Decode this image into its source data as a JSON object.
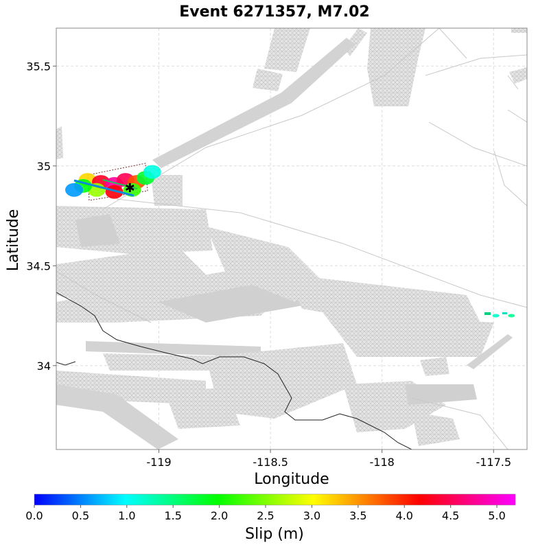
{
  "chart_data": {
    "type": "map",
    "title": "Event 6271357, M7.02",
    "xlabel": "Longitude",
    "ylabel": "Latitude",
    "xlim": [
      -119.46,
      -117.35
    ],
    "ylim": [
      33.58,
      35.69
    ],
    "x_ticks": [
      -119,
      -118.5,
      -118,
      -117.5
    ],
    "y_ticks": [
      34,
      34.5,
      35,
      35.5
    ],
    "grid": true,
    "colorbar": {
      "label": "Slip (m)",
      "range": [
        0,
        5.2
      ],
      "ticks": [
        0.0,
        0.5,
        1.0,
        1.5,
        2.0,
        2.5,
        3.0,
        3.5,
        4.0,
        4.5,
        5.0
      ],
      "colors": [
        "#0000ff",
        "#00ffff",
        "#00ff00",
        "#ffff00",
        "#ff0000",
        "#ff00ff"
      ]
    },
    "rupture": {
      "hypocenter": [
        -119.13,
        34.89
      ],
      "patches": [
        {
          "lon": -119.32,
          "lat": 34.93,
          "slip": 3.2
        },
        {
          "lon": -119.26,
          "lat": 34.92,
          "slip": 4.3
        },
        {
          "lon": -119.2,
          "lat": 34.91,
          "slip": 4.8
        },
        {
          "lon": -119.15,
          "lat": 34.93,
          "slip": 4.5
        },
        {
          "lon": -119.1,
          "lat": 34.92,
          "slip": 3.8
        },
        {
          "lon": -119.06,
          "lat": 34.94,
          "slip": 1.8
        },
        {
          "lon": -119.28,
          "lat": 34.88,
          "slip": 2.6
        },
        {
          "lon": -119.2,
          "lat": 34.87,
          "slip": 4.2
        },
        {
          "lon": -119.12,
          "lat": 34.88,
          "slip": 2.2
        },
        {
          "lon": -119.34,
          "lat": 34.9,
          "slip": 1.9
        },
        {
          "lon": -119.38,
          "lat": 34.88,
          "slip": 0.6
        },
        {
          "lon": -119.03,
          "lat": 34.97,
          "slip": 1.1
        },
        {
          "lon": -117.42,
          "lat": 34.25,
          "slip": 1.4
        },
        {
          "lon": -117.49,
          "lat": 34.25,
          "slip": 1.2
        }
      ]
    }
  }
}
